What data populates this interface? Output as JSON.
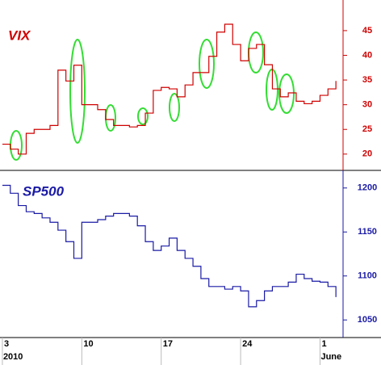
{
  "chart_data": [
    {
      "type": "line",
      "title": "VIX",
      "color": "#d00000",
      "x": [
        0,
        0.5,
        1,
        1.5,
        2,
        2.5,
        3,
        3.5,
        4,
        4.5,
        5,
        5.5,
        6,
        6.5,
        7,
        7.5,
        8,
        8.5,
        9,
        9.5,
        10,
        10.5,
        11,
        11.5,
        12,
        12.5,
        13,
        13.5,
        14,
        14.5,
        15,
        15.5,
        16,
        16.5,
        17,
        17.5,
        18,
        18.5,
        19,
        19.5,
        20,
        20.5,
        21
      ],
      "values": [
        22,
        21,
        20,
        24.2,
        25,
        25,
        25.8,
        37,
        34.8,
        38,
        30,
        30,
        29,
        27,
        25.8,
        25.8,
        25.5,
        25.8,
        28.3,
        32.9,
        33.5,
        33.2,
        31.6,
        34,
        36.5,
        36.5,
        39.8,
        44.7,
        46.3,
        42.2,
        38.9,
        41.4,
        42.2,
        38.1,
        33.2,
        31.6,
        32.4,
        30.7,
        30.2,
        30.7,
        31.9,
        33.2,
        34.8
      ],
      "xlim": [
        -0.15,
        21.45
      ],
      "ylim": [
        16.7,
        51.2
      ],
      "yticks": [
        20,
        25,
        30,
        35,
        40,
        45
      ]
    },
    {
      "type": "line",
      "title": "SP500",
      "color": "#1a1aa6",
      "x": [
        0,
        0.5,
        1,
        1.5,
        2,
        2.5,
        3,
        3.5,
        4,
        4.5,
        5,
        5.5,
        6,
        6.5,
        7,
        7.5,
        8,
        8.5,
        9,
        9.5,
        10,
        10.5,
        11,
        11.5,
        12,
        12.5,
        13,
        13.5,
        14,
        14.5,
        15,
        15.5,
        16,
        16.5,
        17,
        17.5,
        18,
        18.5,
        19,
        19.5,
        20,
        20.5,
        21
      ],
      "values": [
        1203,
        1194,
        1180,
        1173,
        1171,
        1166,
        1161,
        1152,
        1139,
        1120,
        1161,
        1161,
        1164,
        1168,
        1171,
        1171,
        1168,
        1157,
        1139,
        1129,
        1134,
        1143,
        1129,
        1120,
        1111,
        1097,
        1088,
        1088,
        1085,
        1088,
        1083,
        1065,
        1072,
        1083,
        1088,
        1088,
        1093,
        1102,
        1097,
        1094,
        1093,
        1088,
        1076
      ],
      "xlim": [
        -0.15,
        21.45
      ],
      "ylim": [
        1030,
        1220
      ],
      "yticks": [
        1050,
        1100,
        1150,
        1200
      ],
      "xticks": [
        {
          "value": 0,
          "label": "3"
        },
        {
          "value": 5,
          "label": "10"
        },
        {
          "value": 10,
          "label": "17"
        },
        {
          "value": 15,
          "label": "24"
        },
        {
          "value": 20,
          "label": "1"
        }
      ],
      "x_sublabels": [
        {
          "value": 0,
          "label": "2010"
        },
        {
          "value": 20,
          "label": "June"
        }
      ]
    }
  ]
}
